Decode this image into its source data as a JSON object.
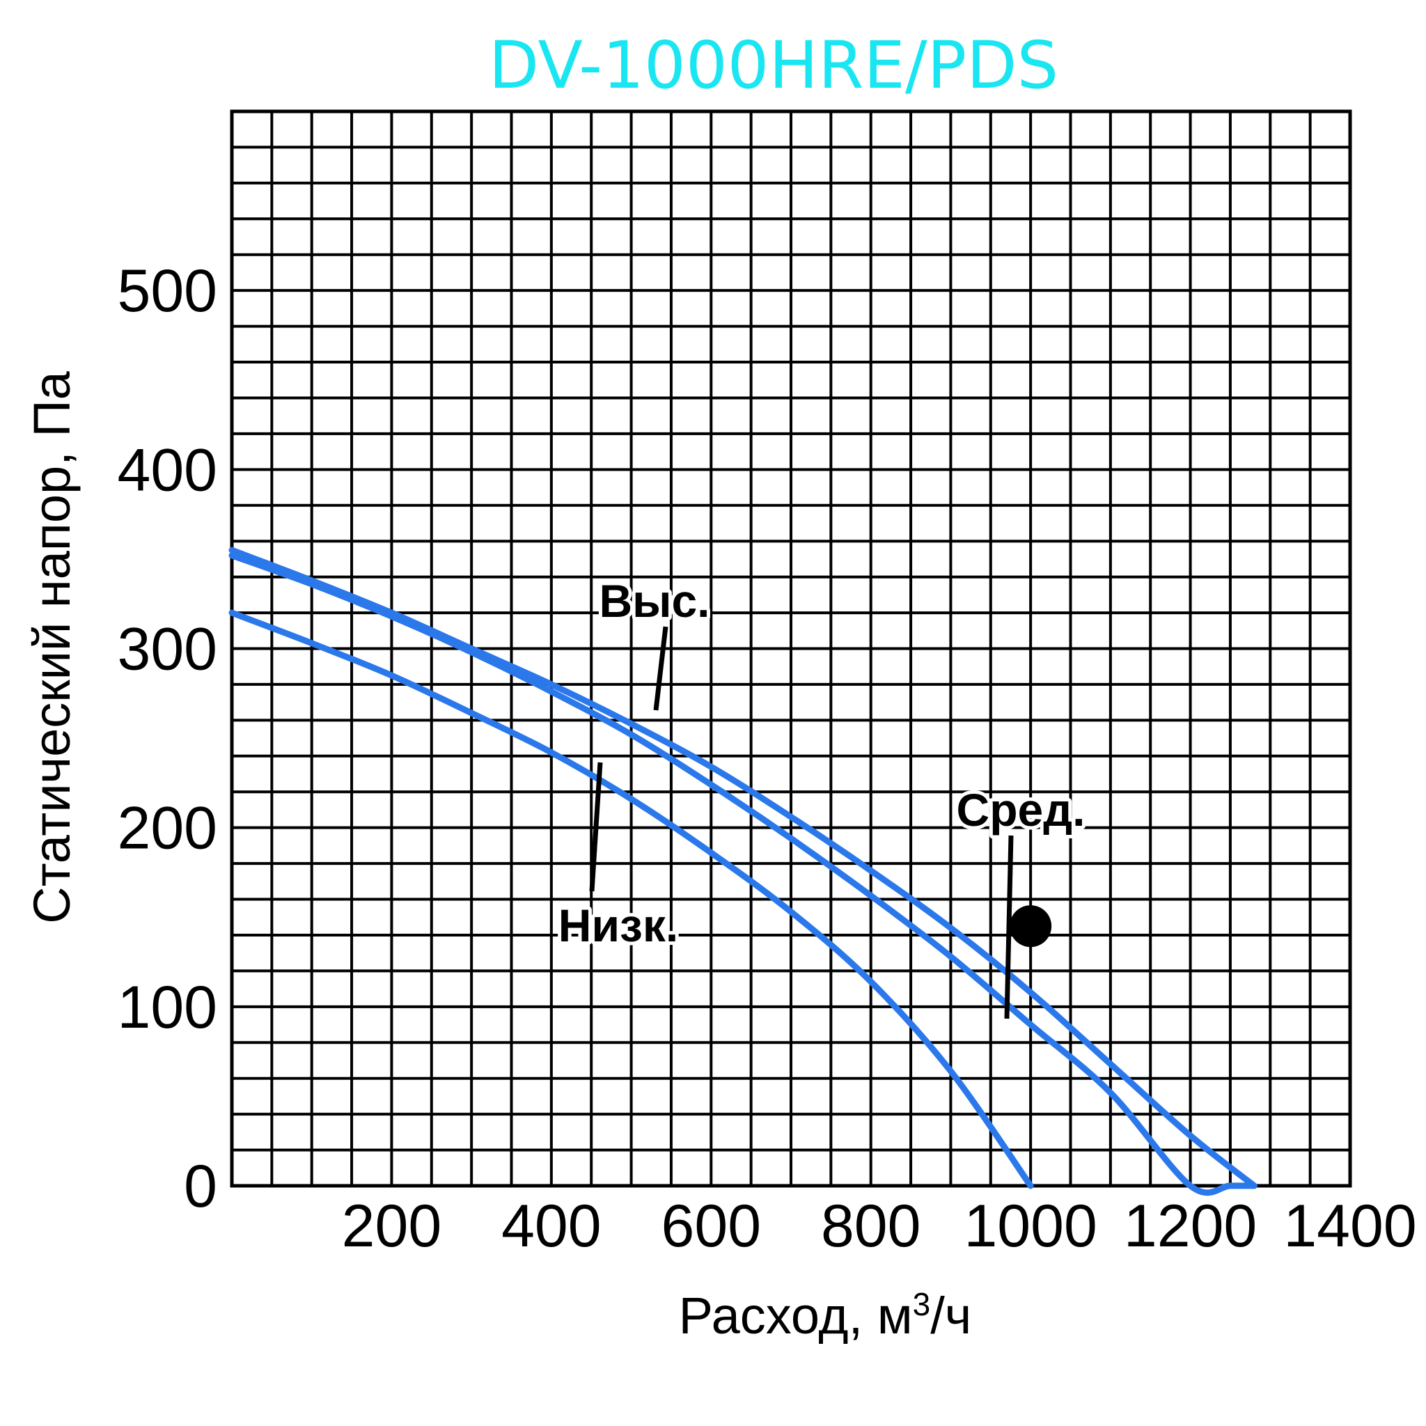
{
  "chart_data": {
    "type": "line",
    "title": "DV-1000HRE/PDS",
    "title_color": "#19e6f0",
    "xlabel": "Расход, м",
    "xlabel_superscript": "3",
    "xlabel_suffix": "/ч",
    "ylabel": "Статический напор, Па",
    "xlim": [
      0,
      1400
    ],
    "ylim": [
      0,
      600
    ],
    "x_ticks": [
      "200",
      "400",
      "600",
      "800",
      "1000",
      "1200",
      "1400"
    ],
    "y_ticks": [
      "0",
      "100",
      "200",
      "300",
      "400",
      "500"
    ],
    "grid": true,
    "grid_x_step": 50,
    "grid_y_step": 20,
    "line_color": "#2b78ea",
    "series": [
      {
        "name": "Выс.",
        "x": [
          0,
          100,
          200,
          300,
          400,
          500,
          600,
          700,
          800,
          900,
          1000,
          1100,
          1200,
          1250,
          1280
        ],
        "y": [
          352,
          336,
          318,
          298,
          276,
          252,
          224,
          194,
          162,
          128,
          90,
          52,
          0,
          0,
          0
        ]
      },
      {
        "name": "Сред.",
        "x": [
          0,
          100,
          200,
          300,
          400,
          500,
          600,
          700,
          800,
          900,
          1000,
          1100,
          1200,
          1280
        ],
        "y": [
          355,
          338,
          320,
          300,
          280,
          258,
          234,
          206,
          176,
          144,
          108,
          68,
          28,
          0
        ]
      },
      {
        "name": "Низк.",
        "x": [
          0,
          100,
          200,
          300,
          400,
          500,
          600,
          700,
          800,
          900,
          1000
        ],
        "y": [
          320,
          303,
          285,
          264,
          242,
          216,
          186,
          153,
          114,
          64,
          0
        ]
      }
    ],
    "labels": {
      "high": "Выс.",
      "mid": "Сред.",
      "low": "Низк."
    },
    "operating_point": {
      "x": 1000,
      "y": 145
    }
  }
}
